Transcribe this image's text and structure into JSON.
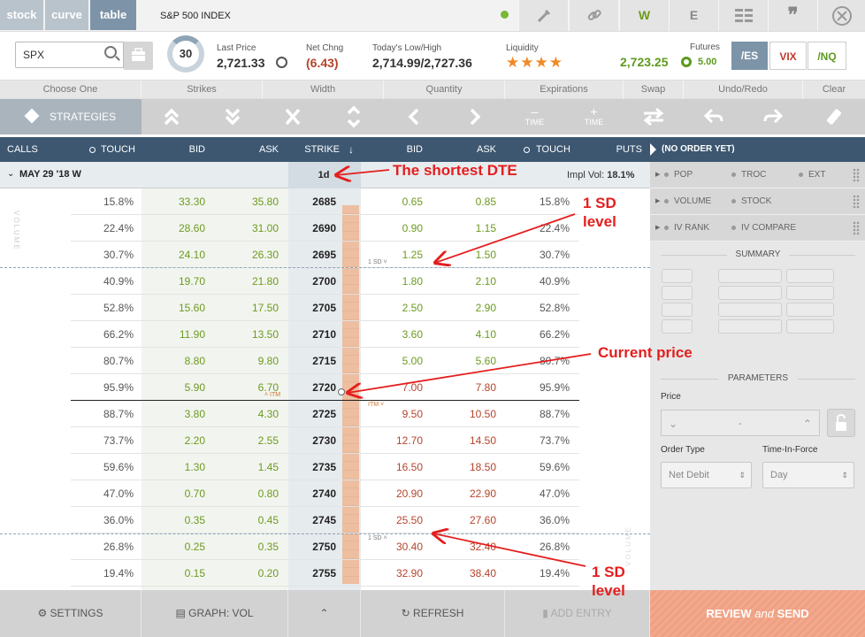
{
  "tabs": [
    {
      "label": "stock",
      "active": false
    },
    {
      "label": "curve",
      "active": false
    },
    {
      "label": "table",
      "active": true
    }
  ],
  "index_title": "S&P 500 INDEX",
  "toolbar_icons": [
    "pencil-icon",
    "link-icon",
    "W",
    "E",
    "grid-icon",
    "quote-icon",
    "close-icon"
  ],
  "symbol": "SPX",
  "gauge_value": "30",
  "quote": {
    "last_price_label": "Last Price",
    "last_price": "2,721.33",
    "net_chng_label": "Net Chng",
    "net_chng": "(6.43)",
    "range_label": "Today's Low/High",
    "range": "2,714.99/2,727.36",
    "liquidity_label": "Liquidity",
    "liquidity_stars": "★★★★",
    "futures_label": "Futures",
    "futures_value": "2,723.25",
    "futures_chg": "5.00"
  },
  "futures_buttons": [
    "/ES",
    "VIX",
    "/NQ"
  ],
  "toolbar_labels": [
    "Choose One",
    "Strikes",
    "Width",
    "Quantity",
    "Expirations",
    "Swap",
    "Undo/Redo",
    "Clear"
  ],
  "strategies_label": "STRATEGIES",
  "time_minus": "TIME",
  "time_plus": "TIME",
  "grid_header": {
    "calls": "CALLS",
    "touch_left": "TOUCH",
    "bid_left": "BID",
    "ask_left": "ASK",
    "strike": "STRIKE",
    "bid_right": "BID",
    "ask_right": "ASK",
    "touch_right": "TOUCH",
    "puts": "PUTS"
  },
  "expiration": {
    "label": "MAY 29 '18 W",
    "dte": "1d",
    "impl_vol_label": "Impl Vol:",
    "impl_vol": "18.1%"
  },
  "volume_label": "VOLUME",
  "sd_label": "1 SD",
  "itm_label": "ITM",
  "rows": [
    {
      "ctouch": "15.8%",
      "cbid": "33.30",
      "cask": "35.80",
      "strike": "2685",
      "pbid": "0.65",
      "pask": "0.85",
      "ptouch": "15.8%"
    },
    {
      "ctouch": "22.4%",
      "cbid": "28.60",
      "cask": "31.00",
      "strike": "2690",
      "pbid": "0.90",
      "pask": "1.15",
      "ptouch": "22.4%"
    },
    {
      "ctouch": "30.7%",
      "cbid": "24.10",
      "cask": "26.30",
      "strike": "2695",
      "pbid": "1.25",
      "pask": "1.50",
      "ptouch": "30.7%"
    },
    {
      "ctouch": "40.9%",
      "cbid": "19.70",
      "cask": "21.80",
      "strike": "2700",
      "pbid": "1.80",
      "pask": "2.10",
      "ptouch": "40.9%"
    },
    {
      "ctouch": "52.8%",
      "cbid": "15.60",
      "cask": "17.50",
      "strike": "2705",
      "pbid": "2.50",
      "pask": "2.90",
      "ptouch": "52.8%"
    },
    {
      "ctouch": "66.2%",
      "cbid": "11.90",
      "cask": "13.50",
      "strike": "2710",
      "pbid": "3.60",
      "pask": "4.10",
      "ptouch": "66.2%"
    },
    {
      "ctouch": "80.7%",
      "cbid": "8.80",
      "cask": "9.80",
      "strike": "2715",
      "pbid": "5.00",
      "pask": "5.60",
      "ptouch": "80.7%"
    },
    {
      "ctouch": "95.9%",
      "cbid": "5.90",
      "cask": "6.70",
      "strike": "2720",
      "pbid": "7.00",
      "pask": "7.80",
      "ptouch": "95.9%"
    },
    {
      "ctouch": "88.7%",
      "cbid": "3.80",
      "cask": "4.30",
      "strike": "2725",
      "pbid": "9.50",
      "pask": "10.50",
      "ptouch": "88.7%"
    },
    {
      "ctouch": "73.7%",
      "cbid": "2.20",
      "cask": "2.55",
      "strike": "2730",
      "pbid": "12.70",
      "pask": "14.50",
      "ptouch": "73.7%"
    },
    {
      "ctouch": "59.6%",
      "cbid": "1.30",
      "cask": "1.45",
      "strike": "2735",
      "pbid": "16.50",
      "pask": "18.50",
      "ptouch": "59.6%"
    },
    {
      "ctouch": "47.0%",
      "cbid": "0.70",
      "cask": "0.80",
      "strike": "2740",
      "pbid": "20.90",
      "pask": "22.90",
      "ptouch": "47.0%"
    },
    {
      "ctouch": "36.0%",
      "cbid": "0.35",
      "cask": "0.45",
      "strike": "2745",
      "pbid": "25.50",
      "pask": "27.60",
      "ptouch": "36.0%"
    },
    {
      "ctouch": "26.8%",
      "cbid": "0.25",
      "cask": "0.35",
      "strike": "2750",
      "pbid": "30.40",
      "pask": "32.40",
      "ptouch": "26.8%"
    },
    {
      "ctouch": "19.4%",
      "cbid": "0.15",
      "cask": "0.20",
      "strike": "2755",
      "pbid": "32.90",
      "pask": "38.40",
      "ptouch": "19.4%"
    }
  ],
  "right_panel": {
    "no_order": "(NO ORDER YET)",
    "stats": [
      [
        "POP",
        "TROC",
        "EXT"
      ],
      [
        "VOLUME",
        "STOCK"
      ],
      [
        "IV RANK",
        "IV COMPARE"
      ]
    ],
    "summary_title": "SUMMARY",
    "parameters_title": "PARAMETERS",
    "price_label": "Price",
    "price_value": "-",
    "order_type_label": "Order Type",
    "order_type_value": "Net Debit",
    "tif_label": "Time-In-Force",
    "tif_value": "Day"
  },
  "footer": {
    "settings": "SETTINGS",
    "graph": "GRAPH: VOL",
    "refresh": "REFRESH",
    "add_entry": "ADD ENTRY",
    "review_a": "REVIEW",
    "review_and": "and",
    "review_b": "SEND"
  },
  "annotations": {
    "shortest_dte": "The shortest DTE",
    "sd_top_1": "1 SD",
    "sd_top_2": "level",
    "current_price": "Current price",
    "sd_bottom_1": "1 SD",
    "sd_bottom_2": "level"
  },
  "colors": {
    "header_bg": "#3d5771",
    "bid_green": "#6c9a1f",
    "put_red": "#b5442c",
    "annotation_red": "#e41e1e",
    "review_orange": "#f2a98d"
  }
}
